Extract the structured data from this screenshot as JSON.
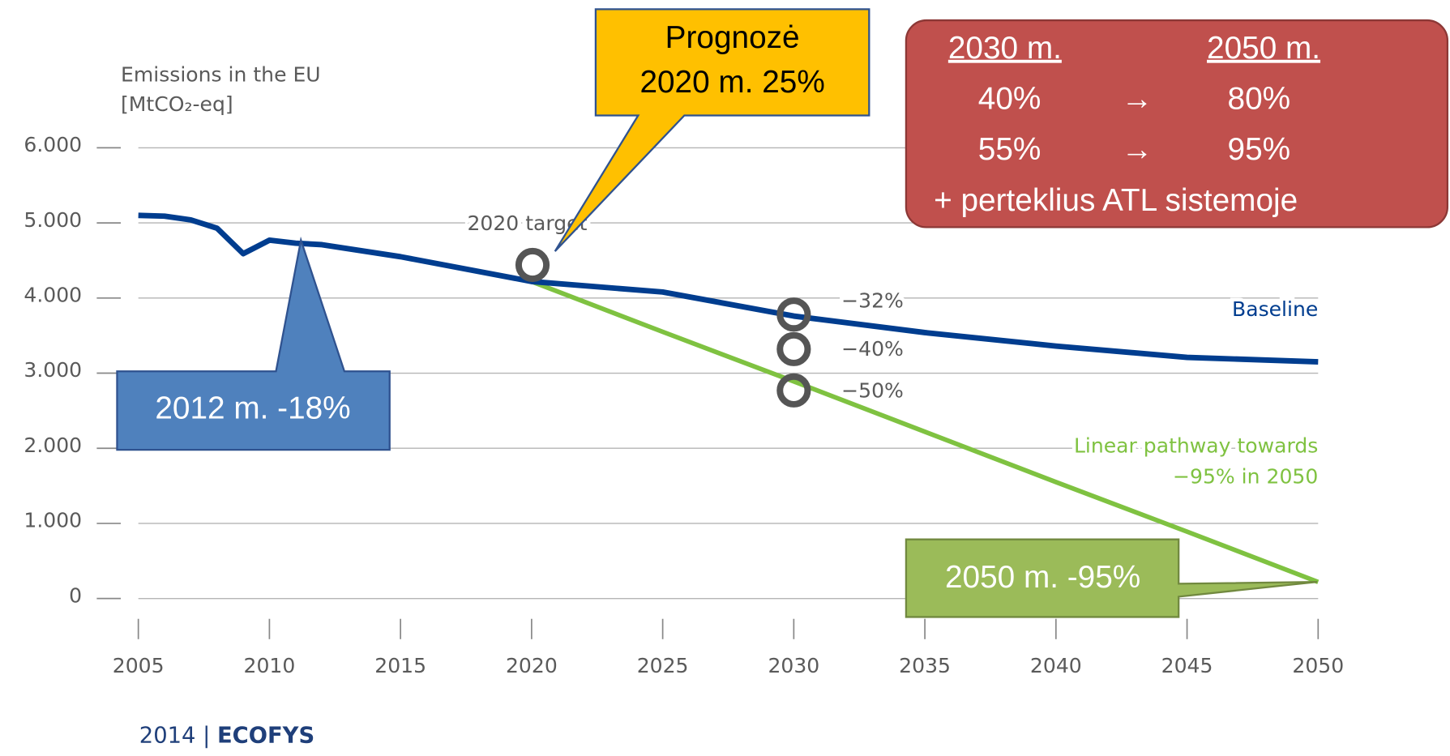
{
  "chart_data": {
    "type": "line",
    "y_label": [
      "Emissions in the EU",
      "[MtCO₂-eq]"
    ],
    "x": [
      2005,
      2006,
      2007,
      2008,
      2009,
      2010,
      2011,
      2012,
      2015,
      2020,
      2025,
      2030,
      2035,
      2040,
      2045,
      2050
    ],
    "series": [
      {
        "name": "Baseline",
        "color": "#003d8f",
        "values": [
          5100,
          5090,
          5040,
          4930,
          4590,
          4770,
          4730,
          4710,
          4550,
          4220,
          4080,
          3760,
          3540,
          3360,
          3210,
          3150
        ]
      },
      {
        "name": "Linear pathway towards −95% in 2050",
        "color": "#7fc241",
        "values": [
          null,
          null,
          null,
          null,
          null,
          null,
          null,
          4710,
          4550,
          4220,
          3550,
          2890,
          2220,
          1550,
          890,
          220
        ]
      }
    ],
    "legend_labels": [
      "Baseline",
      "Linear pathway towards",
      "−95% in 2050"
    ],
    "markers": {
      "x": [
        2020,
        2030,
        2030,
        2030
      ],
      "values": [
        4440,
        3780,
        3320,
        2770
      ],
      "labels": [
        "2020 target",
        "−32%",
        "−40%",
        "−50%"
      ]
    },
    "xlim": [
      2005,
      2050
    ],
    "xticks": [
      2005,
      2010,
      2015,
      2020,
      2025,
      2030,
      2035,
      2040,
      2045,
      2050
    ],
    "ylim": [
      0,
      6000
    ],
    "yticks": [
      0,
      {
        "value": 1000,
        "label": "1.000"
      },
      {
        "value": 2000,
        "label": "2.000"
      },
      {
        "value": 3000,
        "label": "3.000"
      },
      {
        "value": 4000,
        "label": "4.000"
      },
      {
        "value": 5000,
        "label": "5.000"
      },
      {
        "value": 6000,
        "label": "6.000"
      }
    ],
    "grid": true,
    "source": [
      "2014 | ",
      "ECOFYS"
    ]
  },
  "callouts": {
    "forecast": [
      "Prognozė",
      "2020 m. 25%"
    ],
    "y2012": "2012 m. -18%",
    "y2050": "2050 m. -95%"
  },
  "targets_box": {
    "header": [
      "2030 m.",
      "2050 m."
    ],
    "rows": [
      [
        "40%",
        "→",
        "80%"
      ],
      [
        "55%",
        "→",
        "95%"
      ]
    ],
    "footer": "+ perteklius ATL sistemoje"
  }
}
